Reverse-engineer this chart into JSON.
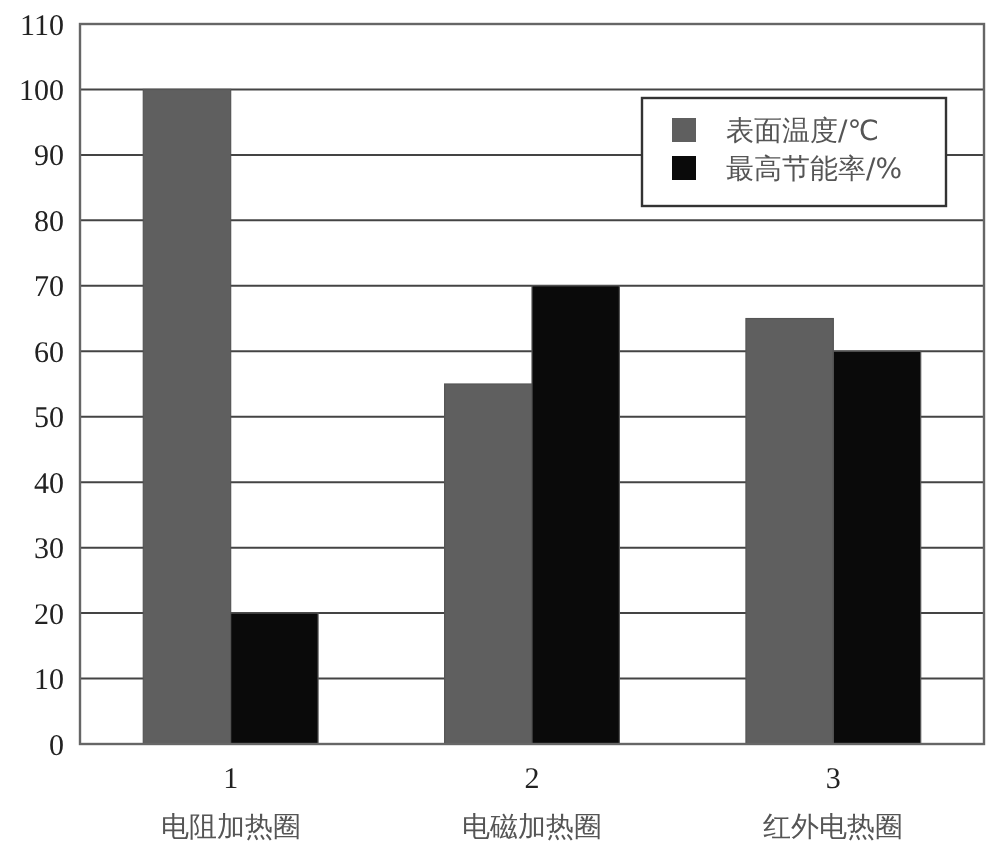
{
  "chart_data": {
    "type": "bar",
    "categories": [
      "1\n电阻加热圈",
      "2\n电磁加热圈",
      "3\n红外电热圈"
    ],
    "series": [
      {
        "name": "表面温度/℃",
        "color": "#5f5f5f",
        "values": [
          100,
          55,
          65
        ]
      },
      {
        "name": "最高节能率/%",
        "color": "#0a0a0a",
        "values": [
          20,
          70,
          60
        ]
      }
    ],
    "ylim": [
      0,
      110
    ],
    "yticks": [
      0,
      10,
      20,
      30,
      40,
      50,
      60,
      70,
      80,
      90,
      100,
      110
    ],
    "grid": "y",
    "legend": "top right"
  }
}
